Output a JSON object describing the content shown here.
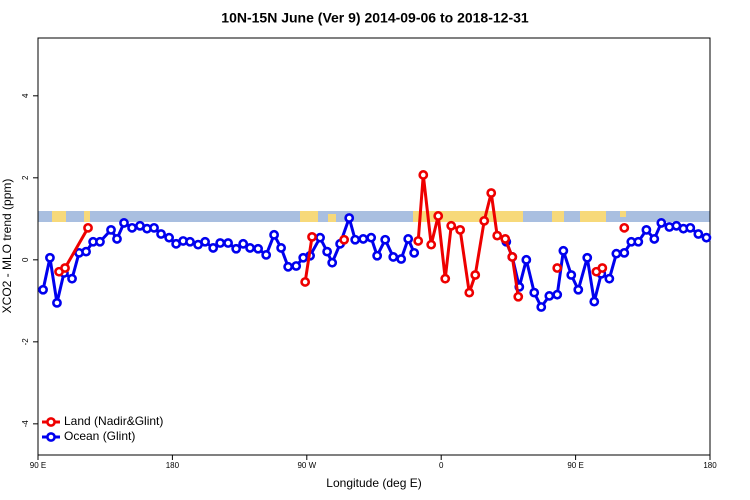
{
  "chart_data": {
    "type": "line",
    "title": "10N-15N June (Ver 9)   2014-09-06 to 2018-12-31",
    "x_label": "Longitude (deg E)",
    "y_label": "XCO2 - MLO trend (ppm)",
    "xlim": [
      90,
      540
    ],
    "ylim": [
      -4.76,
      5.41
    ],
    "xticks": [
      {
        "value": 90,
        "label": "90 E"
      },
      180,
      {
        "value": 270,
        "label": "90 W"
      },
      {
        "value": 360,
        "label": "0"
      },
      {
        "value": 450,
        "label": "90 E"
      },
      {
        "value": 540,
        "label": "180"
      }
    ],
    "yticks": [
      -4,
      -2,
      0,
      2,
      4
    ],
    "legend": "bottom-left",
    "series": [
      {
        "name": "Ocean (Glint)",
        "color": "#0000ee",
        "x": [
          93.4,
          98,
          102.7,
          107.4,
          112.8,
          117.5,
          122.2,
          126.9,
          131.5,
          138.9,
          142.9,
          147.6,
          153,
          158.3,
          163,
          167.7,
          172.4,
          177.8,
          182.5,
          187.2,
          191.8,
          197.2,
          201.9,
          207.3,
          212,
          217.3,
          222.7,
          227.4,
          232,
          237.4,
          242.8,
          248.1,
          252.8,
          257.5,
          262.9,
          267.6,
          272.2,
          278.9,
          283.6,
          287,
          292.3,
          298.4,
          302.4,
          307.8,
          313.1,
          317.1,
          322.5,
          327.9,
          333.2,
          337.9,
          341.9,
          null,
          403.6,
          407.6,
          412.3,
          417,
          422.3,
          427,
          432.4,
          437.7,
          441.8,
          447.1,
          451.8,
          457.8,
          462.5,
          467.2,
          472.6,
          477.3,
          482.6,
          487.3,
          492,
          497.4,
          502.7,
          507.4,
          512.8,
          517.5,
          522.2,
          526.8,
          532.2,
          537.6
        ],
        "values": [
          -0.73,
          0.05,
          -1.05,
          -0.32,
          -0.46,
          0.17,
          0.2,
          0.44,
          0.44,
          0.73,
          0.51,
          0.9,
          0.78,
          0.83,
          0.76,
          0.78,
          0.63,
          0.54,
          0.39,
          0.46,
          0.44,
          0.37,
          0.44,
          0.29,
          0.41,
          0.41,
          0.27,
          0.39,
          0.29,
          0.27,
          0.12,
          0.61,
          0.29,
          -0.17,
          -0.15,
          0.05,
          0.1,
          0.54,
          0.2,
          -0.07,
          0.39,
          1.02,
          0.49,
          0.51,
          0.54,
          0.1,
          0.49,
          0.07,
          0.02,
          0.51,
          0.17,
          null,
          0.44,
          0.07,
          -0.66,
          0,
          -0.8,
          -1.15,
          -0.88,
          -0.85,
          0.22,
          -0.37,
          -0.73,
          0.05,
          -1.02,
          -0.34,
          -0.46,
          0.15,
          0.17,
          0.44,
          0.44,
          0.73,
          0.51,
          0.9,
          0.8,
          0.83,
          0.76,
          0.78,
          0.63,
          0.54
        ]
      },
      {
        "name": "Land (Nadir&Glint)",
        "color": "#ee0000",
        "x": [
          104.1,
          108.1,
          123.5,
          null,
          268.9,
          273.5,
          null,
          295,
          null,
          344.6,
          348,
          353.3,
          358,
          362.7,
          366.7,
          372.7,
          378.8,
          382.8,
          388.8,
          393.5,
          397.5,
          402.9,
          407.6,
          411.6,
          null,
          437.7,
          null,
          463.9,
          467.9,
          null,
          482.6
        ],
        "values": [
          -0.29,
          -0.2,
          0.78,
          null,
          -0.54,
          0.56,
          null,
          0.49,
          null,
          0.46,
          2.07,
          0.37,
          1.07,
          -0.46,
          0.83,
          0.73,
          -0.8,
          -0.37,
          0.95,
          1.63,
          0.59,
          0.51,
          0.07,
          -0.9,
          null,
          -0.2,
          null,
          -0.29,
          -0.2,
          null,
          0.78
        ]
      }
    ]
  }
}
